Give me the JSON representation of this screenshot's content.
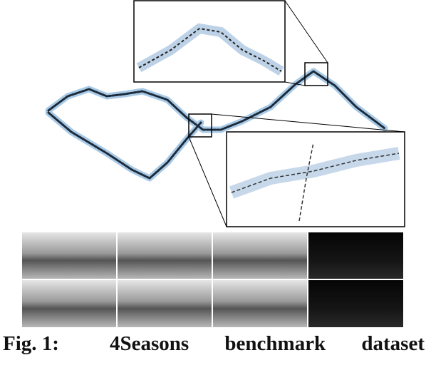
{
  "caption": {
    "label": "Fig. 1:",
    "text": "4Seasons benchmark dataset"
  }
}
